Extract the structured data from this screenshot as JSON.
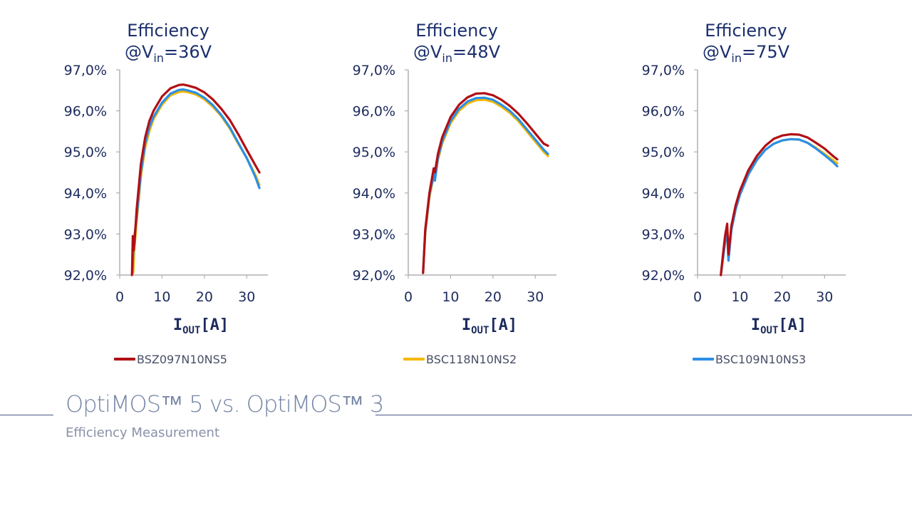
{
  "chart_data": [
    {
      "type": "line",
      "title": "Efficiency",
      "subtitle": {
        "prefix": "@V",
        "sub": "in",
        "suffix": "=36V"
      },
      "xlabel": {
        "main": "I",
        "sub": "OUT",
        "unit": "[A]"
      },
      "xlim": [
        0,
        35
      ],
      "ylim": [
        92.0,
        97.0
      ],
      "xticks": [
        "0",
        "10",
        "20",
        "30"
      ],
      "yticks": [
        "92,0%",
        "93,0%",
        "94,0%",
        "95,0%",
        "96,0%",
        "97,0%"
      ],
      "grid": false,
      "series": [
        {
          "name": "BSC118N10NS2",
          "color": "#f5b800",
          "x": [
            3.2,
            3.5,
            4,
            5,
            6,
            7,
            8,
            10,
            12,
            14,
            15,
            16,
            18,
            20,
            22,
            24,
            26,
            28,
            30,
            32,
            33
          ],
          "y": [
            92.05,
            92.7,
            93.3,
            94.4,
            95.1,
            95.5,
            95.8,
            96.15,
            96.38,
            96.46,
            96.47,
            96.46,
            96.4,
            96.28,
            96.1,
            95.87,
            95.57,
            95.2,
            94.85,
            94.45,
            94.2
          ]
        },
        {
          "name": "BSC109N10NS3",
          "color": "#2a8fe6",
          "x": [
            3.0,
            3.3,
            4,
            5,
            6,
            7,
            8,
            10,
            12,
            14,
            15,
            16,
            18,
            20,
            22,
            24,
            26,
            28,
            30,
            32,
            33
          ],
          "y": [
            92.05,
            92.8,
            93.4,
            94.5,
            95.2,
            95.6,
            95.85,
            96.2,
            96.42,
            96.51,
            96.52,
            96.5,
            96.44,
            96.32,
            96.14,
            95.9,
            95.6,
            95.22,
            94.85,
            94.4,
            94.12
          ]
        },
        {
          "name": "BSZ097N10NS5",
          "color": "#b10f14",
          "x": [
            2.9,
            3.1,
            3.3,
            3.5,
            4,
            5,
            6,
            7,
            8,
            10,
            12,
            14,
            15,
            16,
            18,
            20,
            22,
            24,
            26,
            28,
            30,
            32,
            33
          ],
          "y": [
            92.0,
            92.95,
            92.6,
            92.8,
            93.6,
            94.7,
            95.35,
            95.75,
            96.0,
            96.35,
            96.55,
            96.63,
            96.64,
            96.62,
            96.56,
            96.45,
            96.28,
            96.05,
            95.78,
            95.43,
            95.05,
            94.68,
            94.5
          ]
        }
      ]
    },
    {
      "type": "line",
      "title": "Efficiency",
      "subtitle": {
        "prefix": "@V",
        "sub": "in",
        "suffix": "=48V"
      },
      "xlabel": {
        "main": "I",
        "sub": "OUT",
        "unit": "[A]"
      },
      "xlim": [
        0,
        35
      ],
      "ylim": [
        92.0,
        97.0
      ],
      "xticks": [
        "0",
        "10",
        "20",
        "30"
      ],
      "yticks": [
        "92,0%",
        "93,0%",
        "94,0%",
        "95,0%",
        "96,0%",
        "97,0%"
      ],
      "grid": false,
      "series": [
        {
          "name": "BSC118N10NS2",
          "color": "#f5b800",
          "x": [
            3.5,
            4,
            5,
            6,
            6.3,
            7,
            8,
            10,
            12,
            14,
            16,
            18,
            20,
            22,
            24,
            26,
            28,
            30,
            32,
            33
          ],
          "y": [
            92.05,
            93.0,
            93.9,
            94.4,
            94.35,
            94.8,
            95.2,
            95.7,
            96.0,
            96.18,
            96.26,
            96.27,
            96.22,
            96.1,
            95.95,
            95.75,
            95.5,
            95.25,
            95.0,
            94.9
          ]
        },
        {
          "name": "BSC109N10NS3",
          "color": "#2a8fe6",
          "x": [
            3.5,
            4,
            5,
            6,
            6.3,
            7,
            8,
            10,
            12,
            14,
            16,
            18,
            20,
            22,
            24,
            26,
            28,
            30,
            32,
            33
          ],
          "y": [
            92.05,
            93.05,
            93.95,
            94.45,
            94.3,
            94.85,
            95.25,
            95.75,
            96.05,
            96.23,
            96.31,
            96.32,
            96.27,
            96.15,
            96.0,
            95.8,
            95.55,
            95.3,
            95.05,
            94.95
          ]
        },
        {
          "name": "BSZ097N10NS5",
          "color": "#b10f14",
          "x": [
            3.5,
            4,
            5,
            6,
            6.3,
            7,
            8,
            10,
            12,
            14,
            16,
            18,
            20,
            22,
            24,
            26,
            28,
            30,
            32,
            33
          ],
          "y": [
            92.05,
            93.1,
            94.0,
            94.6,
            94.5,
            94.95,
            95.35,
            95.85,
            96.15,
            96.33,
            96.42,
            96.43,
            96.38,
            96.27,
            96.12,
            95.93,
            95.7,
            95.45,
            95.2,
            95.15
          ]
        }
      ]
    },
    {
      "type": "line",
      "title": "Efficiency",
      "subtitle": {
        "prefix": "@V",
        "sub": "in",
        "suffix": "=75V"
      },
      "xlabel": {
        "main": "I",
        "sub": "OUT",
        "unit": "[A]"
      },
      "xlim": [
        0,
        35
      ],
      "ylim": [
        92.0,
        97.0
      ],
      "xticks": [
        "0",
        "10",
        "20",
        "30"
      ],
      "yticks": [
        "92,0%",
        "93,0%",
        "94,0%",
        "95,0%",
        "96,0%",
        "97,0%"
      ],
      "grid": false,
      "series": [
        {
          "name": "BSC118N10NS2",
          "color": "#f5b800",
          "x": [
            5.5,
            6,
            6.5,
            7,
            7.3,
            8,
            9,
            10,
            12,
            14,
            16,
            18,
            20,
            22,
            24,
            26,
            28,
            30,
            32,
            33
          ],
          "y": [
            92.0,
            92.4,
            92.8,
            93.0,
            92.45,
            93.1,
            93.6,
            93.95,
            94.45,
            94.8,
            95.05,
            95.2,
            95.28,
            95.31,
            95.3,
            95.22,
            95.1,
            94.95,
            94.8,
            94.72
          ]
        },
        {
          "name": "BSC109N10NS3",
          "color": "#2a8fe6",
          "x": [
            5.5,
            6,
            6.5,
            7,
            7.3,
            8,
            9,
            10,
            12,
            14,
            16,
            18,
            20,
            22,
            24,
            26,
            28,
            30,
            32,
            33
          ],
          "y": [
            92.0,
            92.4,
            92.8,
            93.0,
            92.35,
            93.1,
            93.6,
            93.95,
            94.45,
            94.8,
            95.05,
            95.2,
            95.28,
            95.31,
            95.3,
            95.22,
            95.08,
            94.92,
            94.75,
            94.65
          ]
        },
        {
          "name": "BSZ097N10NS5",
          "color": "#b10f14",
          "x": [
            5.5,
            6,
            6.5,
            7,
            7.3,
            8,
            9,
            10,
            12,
            14,
            16,
            18,
            20,
            22,
            24,
            26,
            28,
            30,
            32,
            33
          ],
          "y": [
            92.0,
            92.5,
            92.95,
            93.25,
            92.5,
            93.2,
            93.7,
            94.05,
            94.55,
            94.9,
            95.15,
            95.32,
            95.4,
            95.43,
            95.42,
            95.35,
            95.22,
            95.08,
            94.9,
            94.82
          ]
        }
      ]
    }
  ],
  "legend": [
    {
      "name": "BSZ097N10NS5",
      "color": "#b10f14"
    },
    {
      "name": "BSC118N10NS2",
      "color": "#f5b800"
    },
    {
      "name": "BSC109N10NS3",
      "color": "#2a8fe6"
    }
  ],
  "footer": {
    "title": "OptiMOS™ 5 vs. OptiMOS™ 3",
    "subtitle": "Efficiency Measurement"
  }
}
